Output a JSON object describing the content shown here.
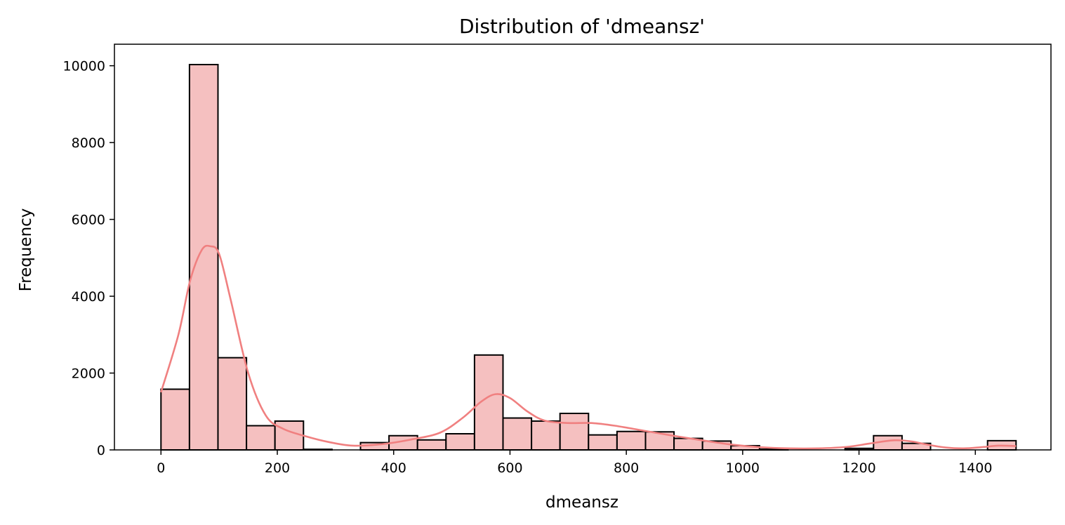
{
  "chart_data": {
    "type": "bar",
    "subtype": "histogram",
    "title": "Distribution of 'dmeansz'",
    "xlabel": "dmeansz",
    "ylabel": "Frequency",
    "xlim": [
      -80,
      1530
    ],
    "ylim": [
      0,
      10560
    ],
    "xticks": [
      0,
      200,
      400,
      600,
      800,
      1000,
      1200,
      1400
    ],
    "yticks": [
      0,
      2000,
      4000,
      6000,
      8000,
      10000
    ],
    "bin_width": 49,
    "bins": [
      {
        "start": 0,
        "count": 1580
      },
      {
        "start": 49,
        "count": 10030
      },
      {
        "start": 98,
        "count": 2400
      },
      {
        "start": 147,
        "count": 630
      },
      {
        "start": 196,
        "count": 750
      },
      {
        "start": 245,
        "count": 15
      },
      {
        "start": 294,
        "count": 0
      },
      {
        "start": 343,
        "count": 190
      },
      {
        "start": 392,
        "count": 370
      },
      {
        "start": 441,
        "count": 260
      },
      {
        "start": 490,
        "count": 420
      },
      {
        "start": 539,
        "count": 2470
      },
      {
        "start": 588,
        "count": 830
      },
      {
        "start": 637,
        "count": 750
      },
      {
        "start": 686,
        "count": 950
      },
      {
        "start": 735,
        "count": 390
      },
      {
        "start": 784,
        "count": 480
      },
      {
        "start": 833,
        "count": 470
      },
      {
        "start": 882,
        "count": 300
      },
      {
        "start": 931,
        "count": 230
      },
      {
        "start": 980,
        "count": 110
      },
      {
        "start": 1029,
        "count": 20
      },
      {
        "start": 1078,
        "count": 0
      },
      {
        "start": 1127,
        "count": 0
      },
      {
        "start": 1176,
        "count": 40
      },
      {
        "start": 1225,
        "count": 370
      },
      {
        "start": 1274,
        "count": 170
      },
      {
        "start": 1323,
        "count": 0
      },
      {
        "start": 1372,
        "count": 0
      },
      {
        "start": 1421,
        "count": 240
      }
    ],
    "kde": {
      "x": [
        0,
        30,
        50,
        70,
        85,
        100,
        120,
        150,
        180,
        210,
        250,
        290,
        330,
        380,
        430,
        480,
        520,
        550,
        575,
        600,
        630,
        660,
        700,
        740,
        780,
        830,
        880,
        930,
        980,
        1030,
        1080,
        1130,
        1180,
        1220,
        1260,
        1290,
        1320,
        1350,
        1380,
        1410,
        1440,
        1470
      ],
      "y": [
        1500,
        3000,
        4400,
        5200,
        5300,
        5100,
        3900,
        2000,
        900,
        550,
        350,
        200,
        110,
        150,
        270,
        450,
        850,
        1250,
        1450,
        1350,
        1000,
        760,
        700,
        700,
        630,
        500,
        370,
        250,
        140,
        70,
        40,
        40,
        80,
        170,
        250,
        220,
        130,
        60,
        40,
        70,
        110,
        100
      ]
    },
    "grid": false,
    "legend": "none",
    "colors": {
      "bar_fill": "#f5c0c0",
      "bar_edge": "#000000",
      "kde_line": "#f08080",
      "axes": "#000000"
    }
  }
}
